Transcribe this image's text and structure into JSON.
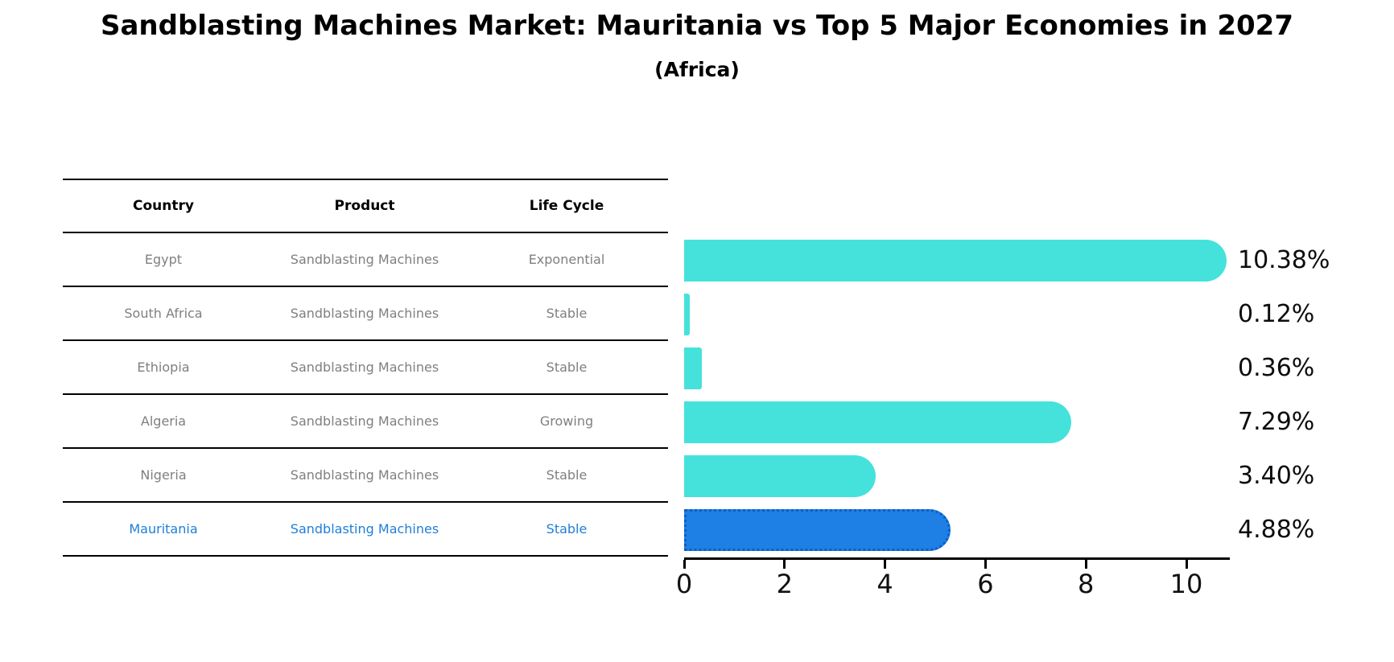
{
  "title": "Sandblasting Machines Market: Mauritania vs Top 5 Major Economies in 2027",
  "subtitle": "(Africa)",
  "table": {
    "headers": [
      "Country",
      "Product",
      "Life Cycle"
    ],
    "rows": [
      {
        "country": "Egypt",
        "product": "Sandblasting Machines",
        "life_cycle": "Exponential",
        "highlighted": false
      },
      {
        "country": "South Africa",
        "product": "Sandblasting Machines",
        "life_cycle": "Stable",
        "highlighted": false
      },
      {
        "country": "Ethiopia",
        "product": "Sandblasting Machines",
        "life_cycle": "Stable",
        "highlighted": false
      },
      {
        "country": "Algeria",
        "product": "Sandblasting Machines",
        "life_cycle": "Growing",
        "highlighted": false
      },
      {
        "country": "Nigeria",
        "product": "Sandblasting Machines",
        "life_cycle": "Stable",
        "highlighted": false
      },
      {
        "country": "Mauritania",
        "product": "Sandblasting Machines",
        "life_cycle": "Stable",
        "highlighted": true
      }
    ]
  },
  "chart_data": {
    "type": "bar",
    "orientation": "horizontal",
    "categories": [
      "Egypt",
      "South Africa",
      "Ethiopia",
      "Algeria",
      "Nigeria",
      "Mauritania"
    ],
    "values": [
      10.38,
      0.12,
      0.36,
      7.29,
      3.4,
      4.88
    ],
    "value_labels": [
      "10.38%",
      "0.12%",
      "0.36%",
      "7.29%",
      "3.40%",
      "4.88%"
    ],
    "highlight_index": 5,
    "x_ticks": [
      0,
      2,
      4,
      6,
      8,
      10
    ],
    "xlim": [
      0,
      10.87
    ],
    "grid": false,
    "legend": "none",
    "bar_color": "#45e2dc",
    "highlight_color": "#1e7fe5",
    "highlight_border_color": "#0e5ec6",
    "axis_color": "#000000"
  }
}
